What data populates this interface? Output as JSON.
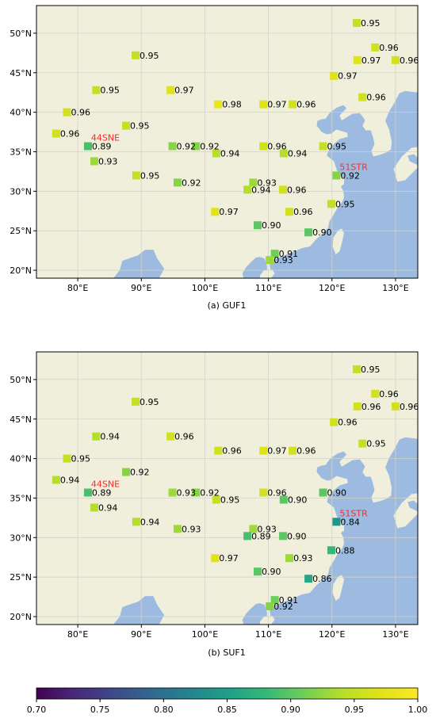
{
  "colors": {
    "land": "#efefdc",
    "sea": "#9dbbe0",
    "grid": "#d2d2c8",
    "annotation": "#ff2a2a"
  },
  "colorbar": {
    "min": 0.7,
    "max": 1.0,
    "ticks": [
      "0.70",
      "0.75",
      "0.80",
      "0.85",
      "0.90",
      "0.95",
      "1.00"
    ]
  },
  "chart_data": [
    {
      "type": "scatter",
      "caption": "(a) GUF1",
      "xlim": [
        73.5,
        133.5
      ],
      "ylim": [
        19,
        53.5
      ],
      "xticks": [
        "80°E",
        "90°E",
        "100°E",
        "110°E",
        "120°E",
        "130°E"
      ],
      "yticks": [
        "20°N",
        "25°N",
        "30°N",
        "35°N",
        "40°N",
        "45°N",
        "50°N"
      ],
      "annotations": [
        {
          "text": "44SNE",
          "lon": 81.6,
          "lat": 35.7
        },
        {
          "text": "51STR",
          "lon": 120.7,
          "lat": 32.0
        }
      ],
      "points": [
        {
          "lon": 123.9,
          "lat": 51.3,
          "label": "0.95"
        },
        {
          "lon": 126.8,
          "lat": 48.2,
          "label": "0.96"
        },
        {
          "lon": 124.0,
          "lat": 46.6,
          "label": "0.97"
        },
        {
          "lon": 130.0,
          "lat": 46.6,
          "label": "0.96"
        },
        {
          "lon": 89.1,
          "lat": 47.2,
          "label": "0.95"
        },
        {
          "lon": 120.3,
          "lat": 44.6,
          "label": "0.97"
        },
        {
          "lon": 82.9,
          "lat": 42.8,
          "label": "0.95"
        },
        {
          "lon": 94.6,
          "lat": 42.8,
          "label": "0.97"
        },
        {
          "lon": 124.8,
          "lat": 41.9,
          "label": "0.96"
        },
        {
          "lon": 102.1,
          "lat": 41.0,
          "label": "0.98"
        },
        {
          "lon": 109.2,
          "lat": 41.0,
          "label": "0.97"
        },
        {
          "lon": 113.8,
          "lat": 41.0,
          "label": "0.96"
        },
        {
          "lon": 78.3,
          "lat": 40.0,
          "label": "0.96"
        },
        {
          "lon": 87.6,
          "lat": 38.3,
          "label": "0.95"
        },
        {
          "lon": 76.6,
          "lat": 37.3,
          "label": "0.96"
        },
        {
          "lon": 81.6,
          "lat": 35.7,
          "label": "0.89"
        },
        {
          "lon": 94.9,
          "lat": 35.7,
          "label": "0.92"
        },
        {
          "lon": 98.6,
          "lat": 35.7,
          "label": "0.92"
        },
        {
          "lon": 101.8,
          "lat": 34.8,
          "label": "0.94"
        },
        {
          "lon": 109.2,
          "lat": 35.7,
          "label": "0.96"
        },
        {
          "lon": 112.4,
          "lat": 34.8,
          "label": "0.94"
        },
        {
          "lon": 118.6,
          "lat": 35.7,
          "label": "0.95"
        },
        {
          "lon": 82.6,
          "lat": 33.8,
          "label": "0.93"
        },
        {
          "lon": 89.2,
          "lat": 32.0,
          "label": "0.95"
        },
        {
          "lon": 120.7,
          "lat": 32.0,
          "label": "0.92"
        },
        {
          "lon": 95.7,
          "lat": 31.1,
          "label": "0.92"
        },
        {
          "lon": 107.6,
          "lat": 31.1,
          "label": "0.93"
        },
        {
          "lon": 106.7,
          "lat": 30.2,
          "label": "0.94"
        },
        {
          "lon": 112.3,
          "lat": 30.2,
          "label": "0.96"
        },
        {
          "lon": 119.9,
          "lat": 28.4,
          "label": "0.95"
        },
        {
          "lon": 101.6,
          "lat": 27.4,
          "label": "0.97"
        },
        {
          "lon": 113.3,
          "lat": 27.4,
          "label": "0.96"
        },
        {
          "lon": 108.3,
          "lat": 25.7,
          "label": "0.90"
        },
        {
          "lon": 116.3,
          "lat": 24.8,
          "label": "0.90"
        },
        {
          "lon": 111.0,
          "lat": 22.1,
          "label": "0.91"
        },
        {
          "lon": 110.2,
          "lat": 21.3,
          "label": "0.93"
        }
      ]
    },
    {
      "type": "scatter",
      "caption": "(b) SUF1",
      "xlim": [
        73.5,
        133.5
      ],
      "ylim": [
        19,
        53.5
      ],
      "xticks": [
        "80°E",
        "90°E",
        "100°E",
        "110°E",
        "120°E",
        "130°E"
      ],
      "yticks": [
        "20°N",
        "25°N",
        "30°N",
        "35°N",
        "40°N",
        "45°N",
        "50°N"
      ],
      "annotations": [
        {
          "text": "44SNE",
          "lon": 81.6,
          "lat": 35.7
        },
        {
          "text": "51STR",
          "lon": 120.7,
          "lat": 32.0
        }
      ],
      "points": [
        {
          "lon": 123.9,
          "lat": 51.3,
          "label": "0.95"
        },
        {
          "lon": 126.8,
          "lat": 48.2,
          "label": "0.96"
        },
        {
          "lon": 124.0,
          "lat": 46.6,
          "label": "0.96"
        },
        {
          "lon": 130.0,
          "lat": 46.6,
          "label": "0.96"
        },
        {
          "lon": 89.1,
          "lat": 47.2,
          "label": "0.95"
        },
        {
          "lon": 120.3,
          "lat": 44.6,
          "label": "0.96"
        },
        {
          "lon": 82.9,
          "lat": 42.8,
          "label": "0.94"
        },
        {
          "lon": 94.6,
          "lat": 42.8,
          "label": "0.96"
        },
        {
          "lon": 124.8,
          "lat": 41.9,
          "label": "0.95"
        },
        {
          "lon": 102.1,
          "lat": 41.0,
          "label": "0.96"
        },
        {
          "lon": 109.2,
          "lat": 41.0,
          "label": "0.97"
        },
        {
          "lon": 113.8,
          "lat": 41.0,
          "label": "0.96"
        },
        {
          "lon": 78.3,
          "lat": 40.0,
          "label": "0.95"
        },
        {
          "lon": 87.6,
          "lat": 38.3,
          "label": "0.92"
        },
        {
          "lon": 76.6,
          "lat": 37.3,
          "label": "0.94"
        },
        {
          "lon": 81.6,
          "lat": 35.7,
          "label": "0.89"
        },
        {
          "lon": 94.9,
          "lat": 35.7,
          "label": "0.93"
        },
        {
          "lon": 98.6,
          "lat": 35.7,
          "label": "0.92"
        },
        {
          "lon": 101.8,
          "lat": 34.8,
          "label": "0.95"
        },
        {
          "lon": 109.2,
          "lat": 35.7,
          "label": "0.96"
        },
        {
          "lon": 112.4,
          "lat": 34.8,
          "label": "0.90"
        },
        {
          "lon": 118.6,
          "lat": 35.7,
          "label": "0.90"
        },
        {
          "lon": 82.6,
          "lat": 33.8,
          "label": "0.94"
        },
        {
          "lon": 89.2,
          "lat": 32.0,
          "label": "0.94"
        },
        {
          "lon": 120.7,
          "lat": 32.0,
          "label": "0.84"
        },
        {
          "lon": 95.7,
          "lat": 31.1,
          "label": "0.93"
        },
        {
          "lon": 107.6,
          "lat": 31.1,
          "label": "0.93"
        },
        {
          "lon": 106.7,
          "lat": 30.2,
          "label": "0.89"
        },
        {
          "lon": 112.3,
          "lat": 30.2,
          "label": "0.90"
        },
        {
          "lon": 119.9,
          "lat": 28.4,
          "label": "0.88"
        },
        {
          "lon": 101.6,
          "lat": 27.4,
          "label": "0.97"
        },
        {
          "lon": 113.3,
          "lat": 27.4,
          "label": "0.93"
        },
        {
          "lon": 108.3,
          "lat": 25.7,
          "label": "0.90"
        },
        {
          "lon": 116.3,
          "lat": 24.8,
          "label": "0.86"
        },
        {
          "lon": 111.0,
          "lat": 22.1,
          "label": "0.91"
        },
        {
          "lon": 110.2,
          "lat": 21.3,
          "label": "0.92"
        }
      ]
    }
  ]
}
